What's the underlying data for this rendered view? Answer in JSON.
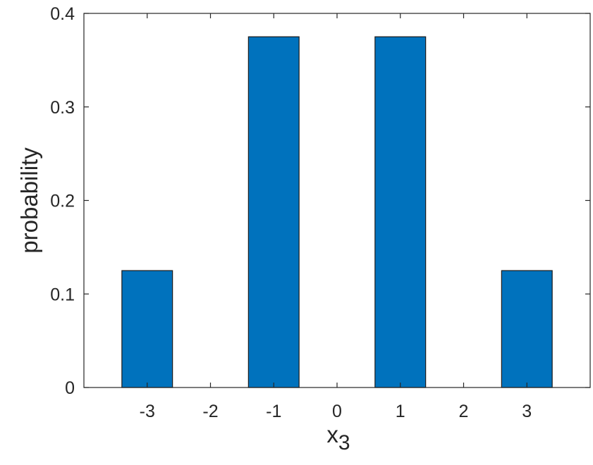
{
  "chart_data": {
    "type": "bar",
    "categories": [
      -3,
      -2,
      -1,
      0,
      1,
      2,
      3
    ],
    "values": [
      0.125,
      0,
      0.375,
      0,
      0.375,
      0,
      0.125
    ],
    "xlabel": "x",
    "xlabel_subscript": "3",
    "ylabel": "probability",
    "xlim": [
      -4,
      4
    ],
    "ylim": [
      0,
      0.4
    ],
    "xticks": [
      -3,
      -2,
      -1,
      0,
      1,
      2,
      3
    ],
    "xtick_labels": [
      "-3",
      "-2",
      "-1",
      "0",
      "1",
      "2",
      "3"
    ],
    "yticks": [
      0,
      0.1,
      0.2,
      0.3,
      0.4
    ],
    "ytick_labels": [
      "0",
      "0.1",
      "0.2",
      "0.3",
      "0.4"
    ],
    "bar_color": "#0072BD",
    "grid": false,
    "box": true
  }
}
